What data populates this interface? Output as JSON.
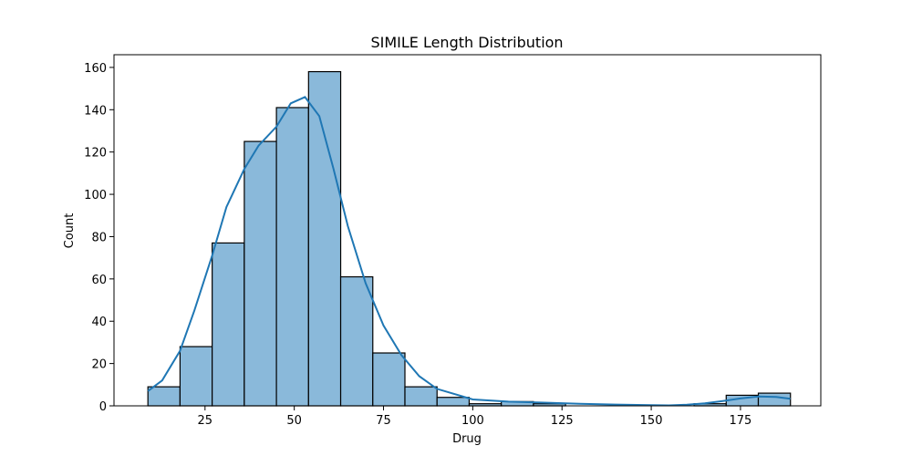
{
  "chart_data": {
    "type": "bar",
    "title": "SIMILE Length Distribution",
    "xlabel": "Drug",
    "ylabel": "Count",
    "xlim": [
      -0.5,
      197.5
    ],
    "ylim": [
      0,
      166
    ],
    "x_ticks": [
      25,
      50,
      75,
      100,
      125,
      150,
      175
    ],
    "y_ticks": [
      0,
      20,
      40,
      60,
      80,
      100,
      120,
      140,
      160
    ],
    "bin_edges": [
      9,
      18,
      27,
      36,
      45,
      54,
      63,
      72,
      81,
      90,
      99,
      108,
      117,
      126,
      135,
      144,
      153,
      162,
      171,
      180,
      189
    ],
    "values": [
      9,
      28,
      77,
      125,
      141,
      158,
      61,
      25,
      9,
      4,
      1,
      2,
      1,
      0,
      0,
      0,
      0,
      1,
      5,
      6
    ],
    "kde": {
      "x": [
        9,
        13,
        18,
        22,
        27,
        31,
        36,
        40,
        45,
        49,
        53,
        57,
        61,
        65,
        70,
        75,
        80,
        85,
        90,
        100,
        110,
        120,
        130,
        140,
        150,
        155,
        160,
        165,
        170,
        175,
        180,
        185,
        189
      ],
      "y": [
        7,
        12,
        26,
        45,
        71,
        94,
        112,
        123,
        132,
        143,
        146,
        137,
        112,
        85,
        58,
        38,
        24,
        14,
        8,
        3,
        2,
        1.5,
        1,
        0.6,
        0.3,
        0.2,
        0.5,
        1.2,
        2.3,
        3.5,
        4.4,
        4.2,
        3.3
      ]
    },
    "colors": {
      "bar_fill": "#8ab9da",
      "bar_edge": "#000000",
      "kde_line": "#1f77b4"
    },
    "grid": false,
    "legend": "none"
  }
}
